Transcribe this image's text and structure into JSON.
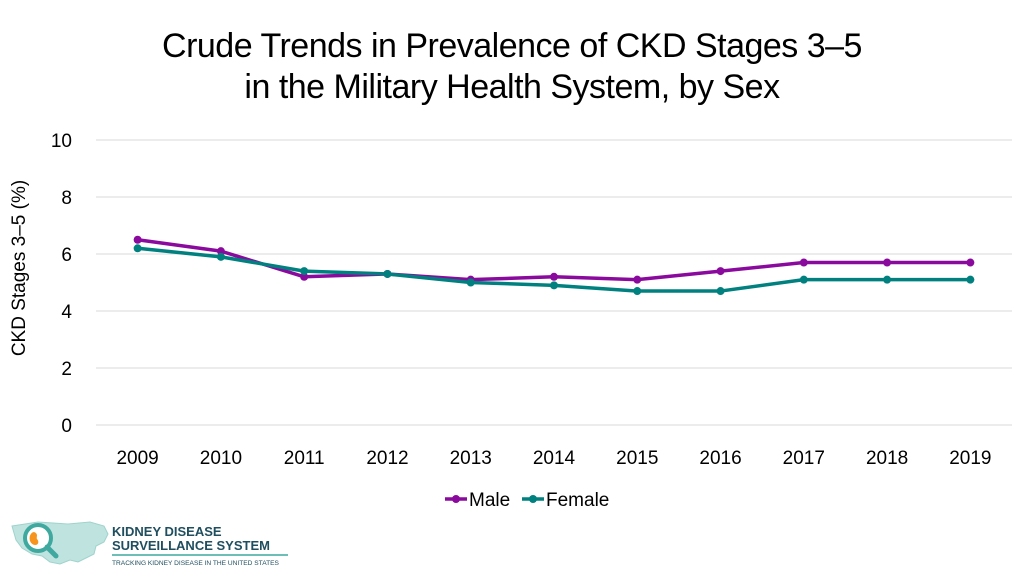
{
  "page_title": {
    "line1": "Crude Trends in Prevalence of CKD Stages 3–5",
    "line2": "in the Military Health System, by Sex"
  },
  "chart_data": {
    "type": "line",
    "title": "Crude Trends in Prevalence of CKD Stages 3–5 in the Military Health System, by Sex",
    "xlabel": "",
    "ylabel": "CKD Stages 3–5 (%)",
    "x": [
      "2009",
      "2010",
      "2011",
      "2012",
      "2013",
      "2014",
      "2015",
      "2016",
      "2017",
      "2018",
      "2019"
    ],
    "ylim": [
      0,
      10
    ],
    "yticks": [
      "0",
      "2",
      "4",
      "6",
      "8",
      "10"
    ],
    "grid": true,
    "legend": "bottom-center",
    "series": [
      {
        "name": "Male",
        "color": "#8B0A9E",
        "values": [
          6.5,
          6.1,
          5.2,
          5.3,
          5.1,
          5.2,
          5.1,
          5.4,
          5.7,
          5.7,
          5.7
        ]
      },
      {
        "name": "Female",
        "color": "#00807F",
        "values": [
          6.2,
          5.9,
          5.4,
          5.3,
          5.0,
          4.9,
          4.7,
          4.7,
          5.1,
          5.1,
          5.1
        ]
      }
    ]
  },
  "logo": {
    "line1": "KIDNEY DISEASE",
    "line2": "SURVEILLANCE SYSTEM",
    "tagline": "TRACKING KIDNEY DISEASE IN THE UNITED STATES",
    "colors": {
      "primary": "#1F4E5F",
      "accent": "#3FA9A0",
      "orange": "#F7941D"
    }
  }
}
